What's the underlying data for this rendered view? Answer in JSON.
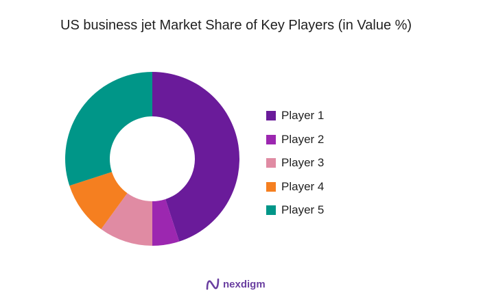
{
  "chart_data": {
    "type": "pie",
    "title": "US business jet Market Share of Key Players (in Value %)",
    "donut": true,
    "categories": [
      "Player 1",
      "Player 2",
      "Player 3",
      "Player 4",
      "Player 5"
    ],
    "values": [
      45,
      5,
      10,
      10,
      30
    ],
    "colors": [
      "#6a1b9a",
      "#9c27b0",
      "#e08ba3",
      "#f57f20",
      "#009688"
    ],
    "legend_position": "right"
  },
  "brand": {
    "name": "nexdigm",
    "color": "#6a3fa0"
  }
}
